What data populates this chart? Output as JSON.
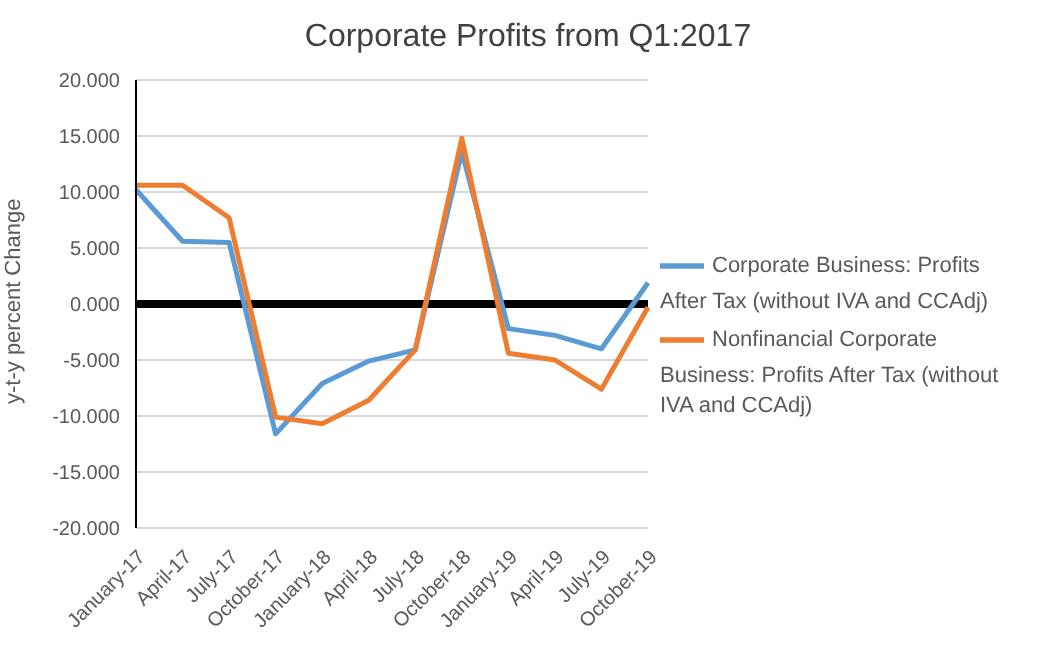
{
  "chart_data": {
    "type": "line",
    "title": "Corporate Profits from Q1:2017",
    "ylabel": "y-t-y  percent Change",
    "categories": [
      "January-17",
      "April-17",
      "July-17",
      "October-17",
      "January-18",
      "April-18",
      "July-18",
      "October-18",
      "January-19",
      "April-19",
      "July-19",
      "October-19"
    ],
    "series": [
      {
        "name": "Corporate Business: Profits After Tax (without IVA and CCAdj)",
        "color": "#5b9bd5",
        "values": [
          10.2,
          5.6,
          5.5,
          -11.6,
          -7.1,
          -5.1,
          -4.1,
          13.6,
          -2.2,
          -2.8,
          -4.0,
          1.9
        ]
      },
      {
        "name": "Nonfinancial Corporate Business: Profits After Tax (without IVA and CCAdj)",
        "color": "#ed7d31",
        "values": [
          10.6,
          10.6,
          7.7,
          -10.1,
          -10.7,
          -8.6,
          -4.1,
          14.8,
          -4.4,
          -5.0,
          -7.6,
          -0.3
        ]
      }
    ],
    "ylim": [
      -20,
      20
    ],
    "yticks": [
      {
        "value": -20,
        "label": "-20.000"
      },
      {
        "value": -15,
        "label": "-15.000"
      },
      {
        "value": -10,
        "label": "-10.000"
      },
      {
        "value": -5,
        "label": "-5.000"
      },
      {
        "value": 0,
        "label": "0.000"
      },
      {
        "value": 5,
        "label": "5.000"
      },
      {
        "value": 10,
        "label": "10.000"
      },
      {
        "value": 15,
        "label": "15.000"
      },
      {
        "value": 20,
        "label": "20.000"
      }
    ],
    "ref_lines": [
      {
        "axis": "y",
        "value": 0,
        "color": "#000000"
      }
    ],
    "grid": "y",
    "legend": "right",
    "marker": "none"
  }
}
